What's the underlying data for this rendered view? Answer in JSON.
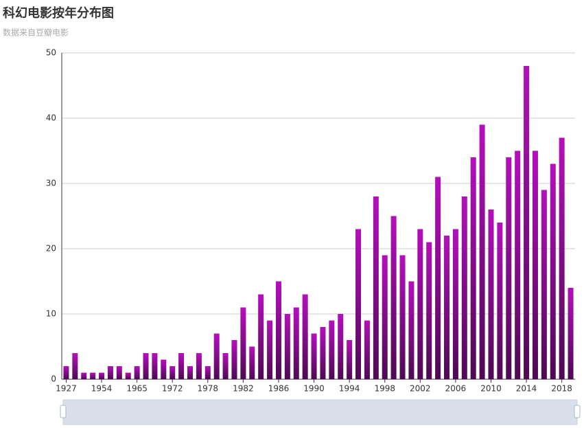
{
  "chart_data": {
    "type": "bar",
    "title": "科幻电影按年分布图",
    "subtitle": "数据来自豆瓣电影",
    "categories": [
      "1927",
      null,
      null,
      null,
      "1954",
      null,
      null,
      null,
      "1965",
      null,
      null,
      null,
      "1972",
      null,
      null,
      null,
      "1978",
      null,
      null,
      null,
      "1982",
      null,
      null,
      null,
      "1986",
      null,
      null,
      null,
      "1990",
      null,
      null,
      null,
      "1994",
      null,
      null,
      null,
      "1998",
      null,
      null,
      null,
      "2002",
      null,
      null,
      null,
      "2006",
      null,
      null,
      null,
      "2010",
      null,
      null,
      null,
      "2014",
      null,
      null,
      null,
      "2018",
      null
    ],
    "values": [
      2,
      4,
      1,
      1,
      1,
      2,
      2,
      1,
      2,
      4,
      4,
      3,
      2,
      4,
      2,
      4,
      2,
      7,
      4,
      6,
      11,
      5,
      13,
      9,
      15,
      10,
      11,
      13,
      7,
      8,
      9,
      10,
      6,
      23,
      9,
      28,
      19,
      25,
      19,
      15,
      23,
      21,
      31,
      22,
      23,
      28,
      34,
      39,
      26,
      24,
      34,
      35,
      48,
      35,
      29,
      33,
      37,
      14
    ],
    "color": [
      "#b50fbd",
      "#4d0a52"
    ],
    "ylim": [
      0,
      50
    ],
    "yticks": [
      0,
      10,
      20,
      30,
      40,
      50
    ],
    "grid": true
  }
}
